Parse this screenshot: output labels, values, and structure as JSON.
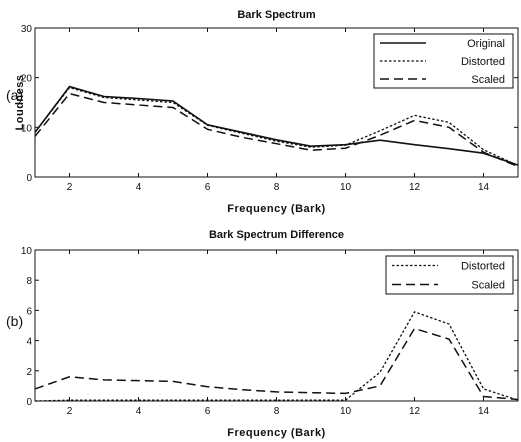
{
  "chart_data": [
    {
      "type": "line",
      "panel_label": "(a)",
      "title": "Bark Spectrum",
      "xlabel": "Frequency (Bark)",
      "ylabel": "Loudness",
      "xlim": [
        1,
        15
      ],
      "ylim": [
        0,
        30
      ],
      "xticks": [
        2,
        4,
        6,
        8,
        10,
        12,
        14
      ],
      "yticks": [
        0,
        10,
        20,
        30
      ],
      "grid": false,
      "legend_position": "top-right",
      "x": [
        1,
        2,
        3,
        4,
        5,
        6,
        7,
        8,
        9,
        10,
        11,
        12,
        13,
        14,
        15
      ],
      "series": [
        {
          "name": "Original",
          "style": "solid",
          "values": [
            9.0,
            18.2,
            16.2,
            15.8,
            15.3,
            10.5,
            9.0,
            7.5,
            6.2,
            6.5,
            7.4,
            6.5,
            5.7,
            4.8,
            2.4
          ]
        },
        {
          "name": "Distorted",
          "style": "dotted",
          "values": [
            9.0,
            18.0,
            16.0,
            15.5,
            15.0,
            10.4,
            8.8,
            7.2,
            6.0,
            6.4,
            9.3,
            12.4,
            11.0,
            5.5,
            2.3
          ]
        },
        {
          "name": "Scaled",
          "style": "dashed",
          "values": [
            8.2,
            16.8,
            15.0,
            14.5,
            14.0,
            9.6,
            8.0,
            6.7,
            5.4,
            5.8,
            8.4,
            11.4,
            10.0,
            5.0,
            2.1
          ]
        }
      ]
    },
    {
      "type": "line",
      "panel_label": "(b)",
      "title": "Bark Spectrum Difference",
      "xlabel": "Frequency (Bark)",
      "ylabel": "",
      "xlim": [
        1,
        15
      ],
      "ylim": [
        0,
        10
      ],
      "xticks": [
        2,
        4,
        6,
        8,
        10,
        12,
        14
      ],
      "yticks": [
        0,
        2,
        4,
        6,
        8,
        10
      ],
      "grid": false,
      "legend_position": "top-right",
      "x": [
        1,
        2,
        3,
        4,
        5,
        6,
        7,
        8,
        9,
        10,
        11,
        12,
        13,
        14,
        15
      ],
      "series": [
        {
          "name": "Distorted",
          "style": "dotted",
          "values": [
            0.0,
            0.05,
            0.05,
            0.05,
            0.05,
            0.05,
            0.05,
            0.05,
            0.05,
            0.05,
            1.9,
            5.9,
            5.1,
            0.8,
            0.05
          ]
        },
        {
          "name": "Scaled",
          "style": "dashed",
          "values": [
            0.8,
            1.6,
            1.4,
            1.35,
            1.3,
            0.95,
            0.75,
            0.6,
            0.55,
            0.5,
            1.0,
            4.8,
            4.1,
            0.3,
            0.1
          ]
        }
      ]
    }
  ]
}
